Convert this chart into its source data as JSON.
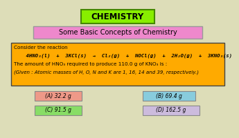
{
  "bg_color": "#ddddb8",
  "title_text": "CHEMISTRY",
  "title_bg": "#88ee00",
  "title_border": "#448800",
  "subtitle_text": "Some Basic Concepts of Chemistry",
  "subtitle_bg": "#ee88cc",
  "subtitle_border": "#999999",
  "question_bg": "#ffaa00",
  "question_border": "#444444",
  "line1": "Consider the reaction",
  "line2": "    4HNO₃(l)  +  3KCl(s)  →  Cl₂(g)  +  NOCl(g)  +  2H₂O(g)  +  3KNO₃(s)",
  "line3": "The amount of HNO₃ required to produce 110.0 g of KNO₃ is :",
  "line4": "(Given : Atomic masses of H, O, N and K are 1, 16, 14 and 39, respectively.)",
  "opt_A_text": "(A) 32.2 g",
  "opt_A_bg": "#ee9988",
  "opt_B_text": "(B) 69.4 g",
  "opt_B_bg": "#88ccdd",
  "opt_C_text": "(C) 91.5 g",
  "opt_C_bg": "#88dd66",
  "opt_D_text": "(D) 162.5 g",
  "opt_D_bg": "#ccbbdd"
}
